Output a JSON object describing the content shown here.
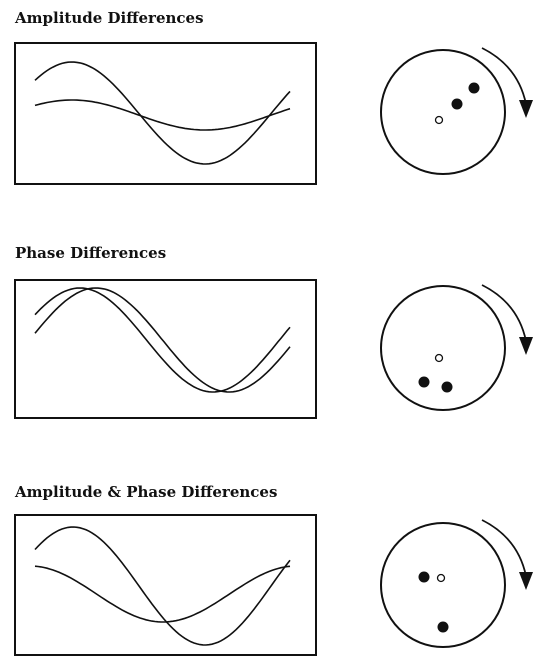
{
  "sections": [
    {
      "title": "Amplitude Differences"
    },
    {
      "title": "Phase Differences"
    },
    {
      "title": "Amplitude & Phase Differences"
    }
  ]
}
